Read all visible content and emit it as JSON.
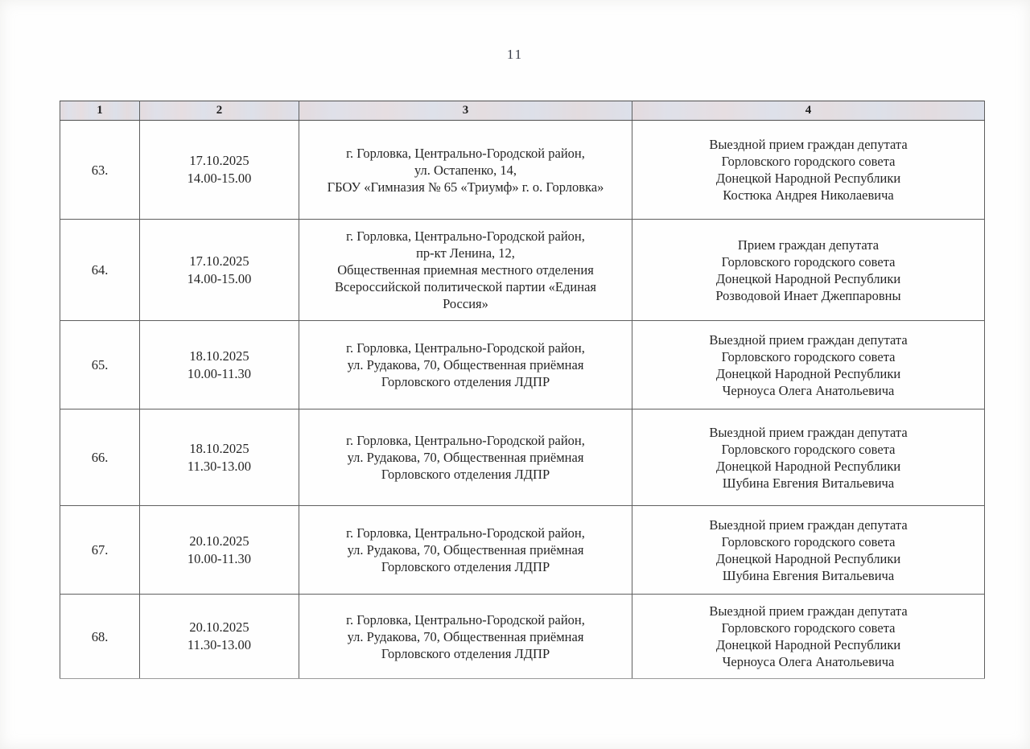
{
  "page": {
    "number": "11"
  },
  "table": {
    "headers": [
      "1",
      "2",
      "3",
      "4"
    ],
    "rows": [
      {
        "num": "63.",
        "date": "17.10.2025",
        "time": "14.00-15.00",
        "location": "г. Горловка, Центрально-Городской район,\nул. Остапенко, 14,\nГБОУ «Гимназия № 65 «Триумф» г. о. Горловка»",
        "event": "Выездной прием граждан депутата\nГорловского городского совета\nДонецкой Народной Республики\nКостюка Андрея Николаевича"
      },
      {
        "num": "64.",
        "date": "17.10.2025",
        "time": "14.00-15.00",
        "location": "г. Горловка, Центрально-Городской район,\nпр-кт Ленина, 12,\nОбщественная приемная местного отделения\nВсероссийской политической партии «Единая\nРоссия»",
        "event": "Прием граждан депутата\nГорловского городского совета\nДонецкой Народной Республики\nРозводовой Инает Джеппаровны"
      },
      {
        "num": "65.",
        "date": "18.10.2025",
        "time": "10.00-11.30",
        "location": "г. Горловка, Центрально-Городской район,\nул. Рудакова, 70, Общественная приёмная\nГорловского отделения ЛДПР",
        "event": "Выездной прием граждан депутата\nГорловского городского совета\nДонецкой Народной Республики\nЧерноуса Олега Анатольевича"
      },
      {
        "num": "66.",
        "date": "18.10.2025",
        "time": "11.30-13.00",
        "location": "г. Горловка, Центрально-Городской район,\nул. Рудакова, 70, Общественная приёмная\nГорловского отделения ЛДПР",
        "event": "Выездной прием граждан депутата\nГорловского городского совета\nДонецкой Народной Республики\nШубина Евгения Витальевича"
      },
      {
        "num": "67.",
        "date": "20.10.2025",
        "time": "10.00-11.30",
        "location": "г. Горловка, Центрально-Городской район,\nул. Рудакова, 70, Общественная приёмная\nГорловского отделения ЛДПР",
        "event": "Выездной прием граждан депутата\nГорловского городского совета\nДонецкой Народной Республики\nШубина Евгения Витальевича"
      },
      {
        "num": "68.",
        "date": "20.10.2025",
        "time": "11.30-13.00",
        "location": "г. Горловка, Центрально-Городской район,\nул. Рудакова, 70, Общественная приёмная\nГорловского отделения ЛДПР",
        "event": "Выездной прием граждан депутата\nГорловского городского совета\nДонецкой Народной Республики\nЧерноуса Олега Анатольевича"
      }
    ]
  }
}
